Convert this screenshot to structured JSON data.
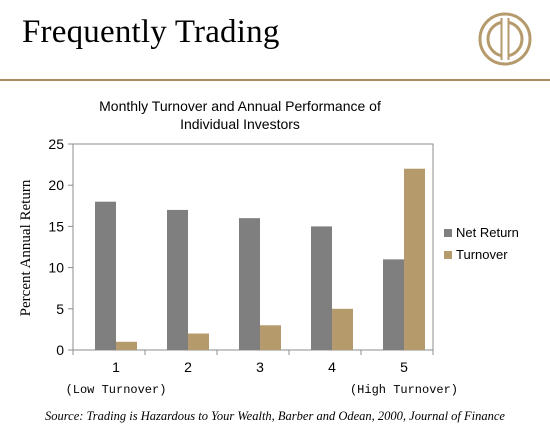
{
  "slide": {
    "title": "Frequently Trading",
    "source": "Source: Trading is Hazardous to Your Wealth, Barber and Odean, 2000, Journal of Finance"
  },
  "colors": {
    "net_return": "#7f7f7f",
    "turnover": "#b59a6b",
    "logo_gold": "#b59a6b",
    "divider": "#a88d5e"
  },
  "chart_data": {
    "type": "bar",
    "title_lines": [
      "Monthly Turnover and Annual Performance of",
      "Individual Investors"
    ],
    "ylabel": "Percent Annual Return",
    "xlabel": "",
    "categories": [
      "1",
      "2",
      "3",
      "4",
      "5"
    ],
    "category_notes": [
      "(Low Turnover)",
      "",
      "",
      "",
      "(High Turnover)"
    ],
    "series": [
      {
        "name": "Net Return",
        "values": [
          18,
          17,
          16,
          15,
          11
        ]
      },
      {
        "name": "Turnover",
        "values": [
          1,
          2,
          3,
          5,
          22
        ]
      }
    ],
    "ylim": [
      0,
      25
    ],
    "yticks": [
      "0",
      "5",
      "10",
      "15",
      "20",
      "25"
    ],
    "ytick_values": [
      0,
      5,
      10,
      15,
      20,
      25
    ],
    "grid": false,
    "legend": "right"
  }
}
